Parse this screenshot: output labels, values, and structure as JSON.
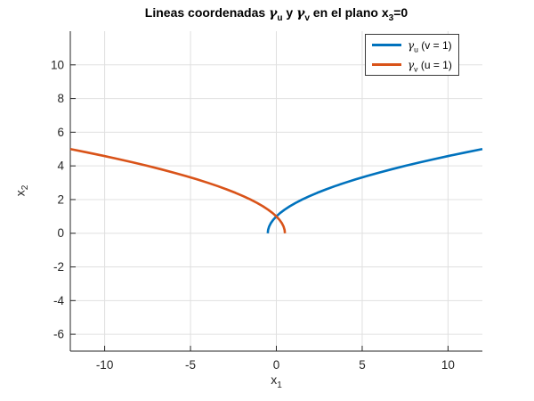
{
  "figure": {
    "background": "#ffffff"
  },
  "title": {
    "part1": "Lineas coordenadas ",
    "gamma_u": "γ",
    "sub_u": "u",
    "part2": " y ",
    "gamma_v": "γ",
    "sub_v": "v",
    "part3": " en el plano x",
    "sub_3": "3",
    "part4": "=0"
  },
  "axes": {
    "xlabel": {
      "base": "x",
      "sub": "1"
    },
    "ylabel": {
      "base": "x",
      "sub": "2"
    },
    "axis_color": "#262626",
    "grid_color": "#e0e0e0",
    "tick_label_color": "#262626"
  },
  "legend": {
    "entries": [
      {
        "gamma": "γ",
        "sub": "u",
        "rest": " (v = 1)",
        "color": "#0072BD"
      },
      {
        "gamma": "γ",
        "sub": "v",
        "rest": " (u = 1)",
        "color": "#D95319"
      }
    ]
  },
  "chart_data": {
    "type": "line",
    "title": "Lineas coordenadas γ_u y γ_v en el plano x_3=0",
    "xlabel": "x_1",
    "ylabel": "x_2",
    "xlim": [
      -12,
      12
    ],
    "ylim": [
      -7,
      12
    ],
    "xticks": [
      -10,
      -5,
      0,
      5,
      10
    ],
    "yticks": [
      -6,
      -4,
      -2,
      0,
      2,
      4,
      6,
      8,
      10
    ],
    "grid": true,
    "legend_position": "top-right",
    "series": [
      {
        "name": "γ_u (v = 1)",
        "color": "#0072BD",
        "line_width": 2.6,
        "x": [
          -0.5,
          -0.48,
          -0.42,
          -0.32,
          -0.18,
          0,
          0.22,
          0.48,
          0.78,
          1.12,
          1.5,
          1.92,
          2.38,
          2.88,
          3.42,
          4,
          4.62,
          5.28,
          5.98,
          6.72,
          7.5,
          8.32,
          9.18,
          10.08,
          11.02,
          12
        ],
        "y": [
          0,
          0.2,
          0.4,
          0.6,
          0.8,
          1,
          1.2,
          1.4,
          1.6,
          1.8,
          2,
          2.2,
          2.4,
          2.6,
          2.8,
          3,
          3.2,
          3.4,
          3.6,
          3.8,
          4,
          4.2,
          4.4,
          4.6,
          4.8,
          5
        ]
      },
      {
        "name": "γ_v (u = 1)",
        "color": "#D95319",
        "line_width": 2.6,
        "x": [
          0.5,
          0.48,
          0.42,
          0.32,
          0.18,
          0,
          -0.22,
          -0.48,
          -0.78,
          -1.12,
          -1.5,
          -1.92,
          -2.38,
          -2.88,
          -3.42,
          -4,
          -4.62,
          -5.28,
          -5.98,
          -6.72,
          -7.5,
          -8.32,
          -9.18,
          -10.08,
          -11.02,
          -12
        ],
        "y": [
          0,
          0.2,
          0.4,
          0.6,
          0.8,
          1,
          1.2,
          1.4,
          1.6,
          1.8,
          2,
          2.2,
          2.4,
          2.6,
          2.8,
          3,
          3.2,
          3.4,
          3.6,
          3.8,
          4,
          4.2,
          4.4,
          4.6,
          4.8,
          5
        ]
      }
    ]
  }
}
